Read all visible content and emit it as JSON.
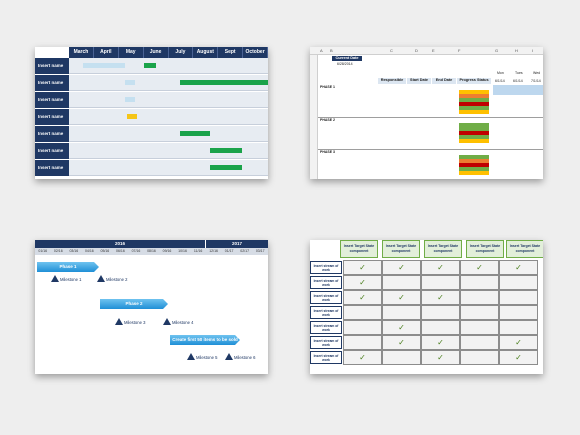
{
  "gantt": {
    "months": [
      "March",
      "April",
      "May",
      "June",
      "July",
      "August",
      "Sept",
      "October"
    ],
    "rows": [
      "Insert name",
      "Insert name",
      "Insert name",
      "Insert name",
      "Insert name",
      "Insert name",
      "Insert name"
    ],
    "colors": {
      "light": "#c5e0f0",
      "green": "#1aa34a",
      "yellow": "#f5c518",
      "header": "#1f3864"
    }
  },
  "spreadsheet": {
    "col_letters": [
      "A",
      "B",
      "C",
      "D",
      "E",
      "F",
      "G",
      "H",
      "I",
      "J"
    ],
    "current_date_label": "Current Date",
    "current_date_value": "6/28/2014",
    "headers": [
      "Responsible",
      "Start Date",
      "End Date",
      "Progress Status"
    ],
    "week_labels": [
      "Mon",
      "Tues",
      "Wed"
    ],
    "week_dates": [
      "6/1/14",
      "6/1/14",
      "7/1/14"
    ],
    "phase_labels": [
      "PHASE 1",
      "PHASE 2",
      "PHASE 3"
    ],
    "status_colors": {
      "green": "#70ad47",
      "orange": "#ed7d31",
      "red": "#c00000",
      "yellow": "#ffc000"
    }
  },
  "timeline": {
    "year1": "2016",
    "year2": "2017",
    "months": [
      "01/16",
      "02/16",
      "03/16",
      "04/16",
      "05/16",
      "06/16",
      "07/16",
      "08/16",
      "09/16",
      "10/16",
      "11/16",
      "12/16",
      "01/17",
      "02/17",
      "03/17"
    ],
    "phases": [
      "Phase 1",
      "Phase 2",
      "Create first 50 items to be sold"
    ],
    "milestones": [
      "Milestone 1",
      "Milestone 2",
      "Milestone 3",
      "Milestone 4",
      "Milestone 5",
      "Milestone 6"
    ]
  },
  "matrix": {
    "col_header": "Insert Target State component",
    "row_header": "Insert stream of work",
    "checkmark": "✓"
  }
}
